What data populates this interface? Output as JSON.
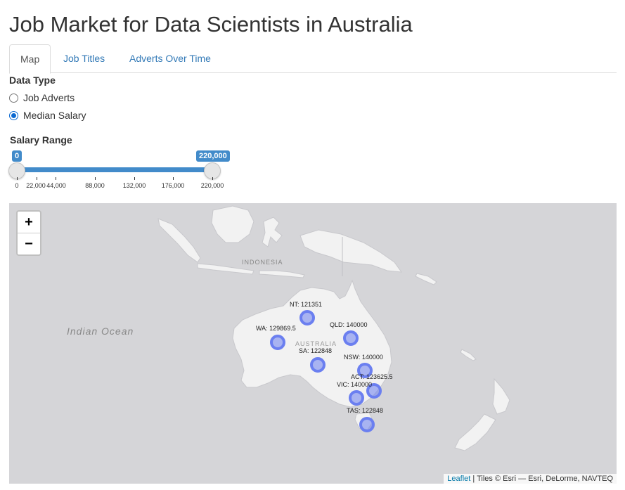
{
  "title": "Job Market for Data Scientists in Australia",
  "tabs": [
    {
      "label": "Map",
      "active": true
    },
    {
      "label": "Job Titles",
      "active": false
    },
    {
      "label": "Adverts Over Time",
      "active": false
    }
  ],
  "data_type": {
    "label": "Data Type",
    "options": [
      "Job Adverts",
      "Median Salary"
    ],
    "selected": "Median Salary"
  },
  "salary_range": {
    "label": "Salary Range",
    "min_label": "0",
    "max_label": "220,000",
    "selected_min": 0,
    "selected_max": 220000,
    "ticks": [
      "0",
      "22,000",
      "44,000",
      "88,000",
      "132,000",
      "176,000",
      "220,000"
    ]
  },
  "map": {
    "ocean_label": "Indian Ocean",
    "country_labels": [
      "INDONESIA",
      "AUSTRALIA"
    ],
    "zoom_in": "+",
    "zoom_out": "−",
    "marker_color": "#6b7ff0",
    "markers": [
      {
        "state": "NT",
        "value": "121351",
        "label": "NT: 121351"
      },
      {
        "state": "WA",
        "value": "129869.5",
        "label": "WA: 129869.5"
      },
      {
        "state": "QLD",
        "value": "140000",
        "label": "QLD: 140000"
      },
      {
        "state": "SA",
        "value": "122848",
        "label": "SA: 122848"
      },
      {
        "state": "NSW",
        "value": "140000",
        "label": "NSW: 140000"
      },
      {
        "state": "ACT",
        "value": "123625.5",
        "label": "ACT: 123625.5"
      },
      {
        "state": "VIC",
        "value": "140000",
        "label": "VIC: 140000"
      },
      {
        "state": "TAS",
        "value": "122848",
        "label": "TAS: 122848"
      }
    ],
    "attribution": {
      "link": "Leaflet",
      "text": " | Tiles © Esri — Esri, DeLorme, NAVTEQ"
    }
  }
}
